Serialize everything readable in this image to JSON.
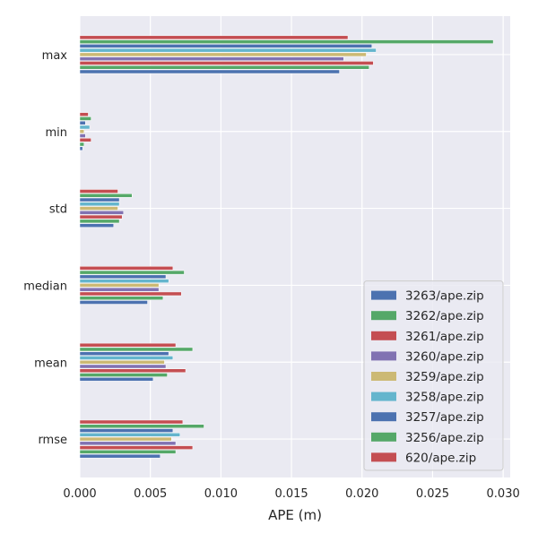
{
  "chart_data": {
    "type": "bar",
    "orientation": "horizontal",
    "categories": [
      "rmse",
      "mean",
      "median",
      "std",
      "min",
      "max"
    ],
    "xlabel": "APE (m)",
    "ylabel": "",
    "xlim": [
      0,
      0.0305
    ],
    "xticks": [
      0,
      0.005,
      0.01,
      0.015,
      0.02,
      0.025,
      0.03
    ],
    "xtick_labels": [
      "0.000",
      "0.005",
      "0.010",
      "0.015",
      "0.020",
      "0.025",
      "0.030"
    ],
    "grid": true,
    "legend_position": "bottom-right",
    "background": "#eaeaf2",
    "series": [
      {
        "name": "3263/ape.zip",
        "color": "#4c72b0",
        "values": [
          0.0057,
          0.0052,
          0.0048,
          0.0024,
          0.0002,
          0.0184
        ]
      },
      {
        "name": "3262/ape.zip",
        "color": "#55a868",
        "values": [
          0.0068,
          0.0062,
          0.0059,
          0.0028,
          0.0003,
          0.0205
        ]
      },
      {
        "name": "3261/ape.zip",
        "color": "#c44e52",
        "values": [
          0.008,
          0.0075,
          0.0072,
          0.003,
          0.0008,
          0.0208
        ]
      },
      {
        "name": "3260/ape.zip",
        "color": "#8172b2",
        "values": [
          0.0068,
          0.0061,
          0.0056,
          0.0031,
          0.0004,
          0.0187
        ]
      },
      {
        "name": "3259/ape.zip",
        "color": "#ccb974",
        "values": [
          0.0065,
          0.006,
          0.0056,
          0.0027,
          0.0003,
          0.0203
        ]
      },
      {
        "name": "3258/ape.zip",
        "color": "#64b5cd",
        "values": [
          0.0071,
          0.0066,
          0.0063,
          0.0028,
          0.0007,
          0.021
        ]
      },
      {
        "name": "3257/ape.zip",
        "color": "#4c72b0",
        "values": [
          0.0066,
          0.0063,
          0.0061,
          0.0028,
          0.0004,
          0.0207
        ]
      },
      {
        "name": "3256/ape.zip",
        "color": "#55a868",
        "values": [
          0.0088,
          0.008,
          0.0074,
          0.0037,
          0.0008,
          0.0293
        ]
      },
      {
        "name": "620/ape.zip",
        "color": "#c44e52",
        "values": [
          0.0073,
          0.0068,
          0.0066,
          0.0027,
          0.0006,
          0.019
        ]
      }
    ]
  }
}
